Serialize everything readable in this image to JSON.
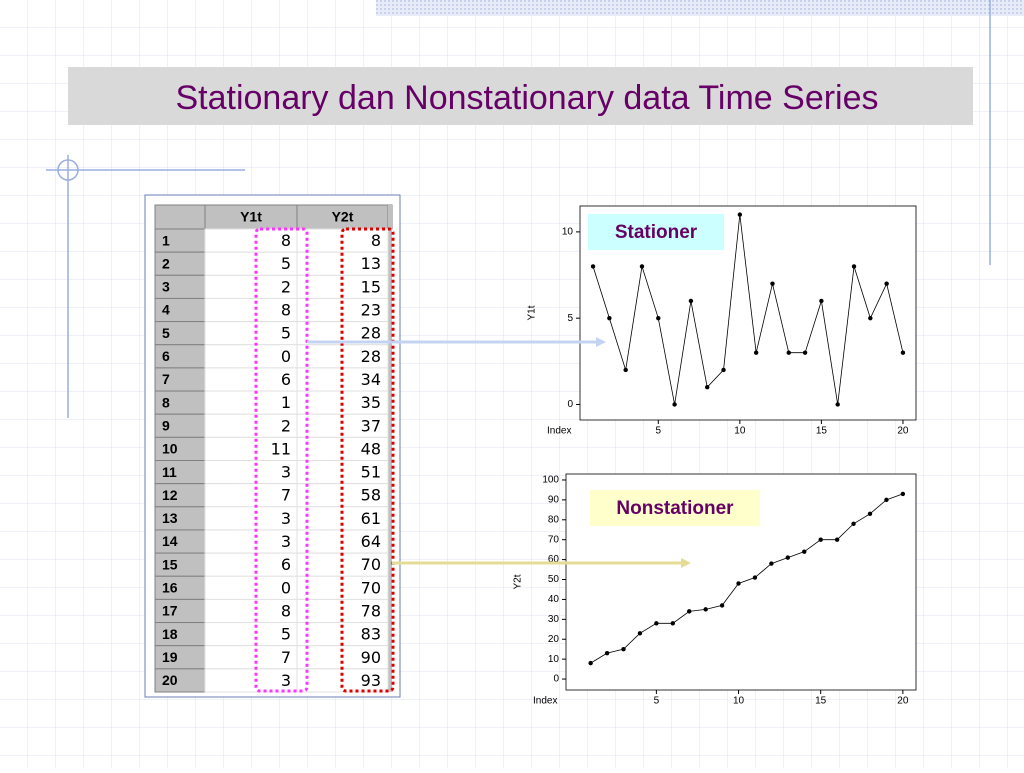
{
  "title": "Stationary dan Nonstationary data Time Series",
  "table": {
    "columns": [
      "Y1t",
      "Y2t"
    ]
  },
  "chart_data": [
    {
      "type": "line",
      "annotation": "Stationer",
      "xlabel": "Index",
      "ylabel": "Y1t",
      "x": [
        1,
        2,
        3,
        4,
        5,
        6,
        7,
        8,
        9,
        10,
        11,
        12,
        13,
        14,
        15,
        16,
        17,
        18,
        19,
        20
      ],
      "values": [
        8,
        5,
        2,
        8,
        5,
        0,
        6,
        1,
        2,
        11,
        3,
        7,
        3,
        3,
        6,
        0,
        8,
        5,
        7,
        3
      ],
      "color": "#000000",
      "xlim": [
        0.2,
        20.8
      ],
      "xticks": [
        5,
        10,
        15,
        20
      ],
      "ylim": [
        -0.9,
        11.5
      ],
      "yticks": [
        0,
        5,
        10
      ]
    },
    {
      "type": "line",
      "annotation": "Nonstationer",
      "xlabel": "Index",
      "ylabel": "Y2t",
      "x": [
        1,
        2,
        3,
        4,
        5,
        6,
        7,
        8,
        9,
        10,
        11,
        12,
        13,
        14,
        15,
        16,
        17,
        18,
        19,
        20
      ],
      "values": [
        8,
        13,
        15,
        23,
        28,
        28,
        34,
        35,
        37,
        48,
        51,
        58,
        61,
        64,
        70,
        70,
        78,
        83,
        90,
        93
      ],
      "color": "#000000",
      "xlim": [
        -0.5,
        20.8
      ],
      "xticks": [
        5,
        10,
        15,
        20
      ],
      "ylim": [
        -5.5,
        103
      ],
      "yticks": [
        0,
        10,
        20,
        30,
        40,
        50,
        60,
        70,
        80,
        90,
        100
      ]
    }
  ]
}
